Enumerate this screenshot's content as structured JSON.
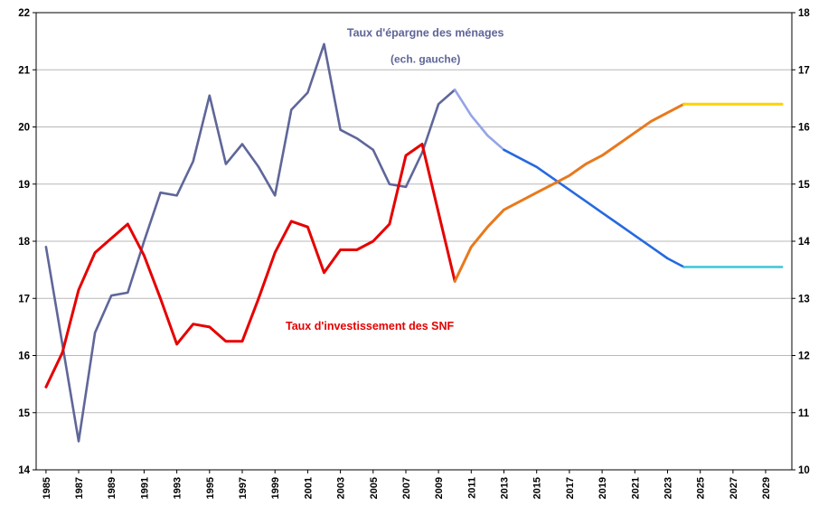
{
  "chart_data": {
    "type": "line",
    "title": "",
    "grid": "horizontal",
    "legend": "none",
    "x_domain": [
      1984.4,
      2030.6
    ],
    "x_ticks": [
      1985,
      1987,
      1989,
      1991,
      1993,
      1995,
      1997,
      1999,
      2001,
      2003,
      2005,
      2007,
      2009,
      2011,
      2013,
      2015,
      2017,
      2019,
      2021,
      2023,
      2025,
      2027,
      2029
    ],
    "left_axis": {
      "min": 14,
      "max": 22,
      "step": 1,
      "ticks": [
        14,
        15,
        16,
        17,
        18,
        19,
        20,
        21,
        22
      ]
    },
    "right_axis": {
      "min": 10,
      "max": 18,
      "step": 1,
      "ticks": [
        10,
        11,
        12,
        13,
        14,
        15,
        16,
        17,
        18
      ]
    },
    "colors": {
      "epargne_hist": "#5F6699",
      "epargne_proj_light": "#94A4E6",
      "epargne_proj_blue": "#2669E0",
      "epargne_proj_cyan": "#3CC6D9",
      "invest_hist": "#E60000",
      "invest_proj_orange": "#E8791D",
      "invest_proj_yellow": "#FFD200",
      "gridline": "#b8b8b8",
      "axis": "#000000"
    },
    "annotations": [
      {
        "text": "Taux d'épargne des ménages",
        "x": 2008.2,
        "y": 21.58,
        "color": "#5F6699",
        "size": 12.5
      },
      {
        "text": "(ech. gauche)",
        "x": 2008.2,
        "y": 21.12,
        "color": "#5F6699",
        "size": 12
      },
      {
        "text": "Taux d'investissement des SNF",
        "x": 2004.8,
        "y": 16.45,
        "color": "#E60000",
        "size": 12.5
      }
    ],
    "series": [
      {
        "id": "epargne-historique",
        "name": "Taux d'épargne des ménages (historique, ech. gauche)",
        "axis": "left",
        "color": "#5F6699",
        "width": 2.6,
        "start_year": 1985,
        "values": [
          17.9,
          16.2,
          14.5,
          16.4,
          17.05,
          17.1,
          18.0,
          18.85,
          18.8,
          19.4,
          20.55,
          19.35,
          19.7,
          19.3,
          18.8,
          20.3,
          20.6,
          21.45,
          19.95,
          19.8,
          19.6,
          19.0,
          18.95,
          19.55,
          20.4,
          20.65
        ]
      },
      {
        "id": "epargne-projection-light",
        "name": "Taux d'épargne des ménages (projection proche, ech. gauche)",
        "axis": "left",
        "color": "#94A4E6",
        "width": 2.6,
        "start_year": 2010,
        "values": [
          20.65,
          20.2,
          19.85,
          19.6
        ]
      },
      {
        "id": "epargne-projection-blue",
        "name": "Taux d'épargne des ménages (projection, ech. gauche)",
        "axis": "left",
        "color": "#2669E0",
        "width": 2.6,
        "start_year": 2013,
        "values": [
          19.6,
          19.45,
          19.3,
          19.1,
          18.9,
          18.7,
          18.5,
          18.3,
          18.1,
          17.9,
          17.7,
          17.55
        ]
      },
      {
        "id": "epargne-projection-cyan",
        "name": "Taux d'épargne des ménages (long terme, ech. gauche)",
        "axis": "left",
        "color": "#3CC6D9",
        "width": 2.6,
        "start_year": 2024,
        "values": [
          17.55,
          17.55,
          17.55,
          17.55,
          17.55,
          17.55,
          17.55
        ]
      },
      {
        "id": "invest-historique",
        "name": "Taux d'investissement des SNF (historique, ech. droite)",
        "axis": "right",
        "color": "#E60000",
        "width": 3,
        "start_year": 1985,
        "values": [
          11.45,
          12.05,
          13.15,
          13.8,
          14.05,
          14.3,
          13.75,
          13.0,
          12.2,
          12.55,
          12.5,
          12.25,
          12.25,
          13.0,
          13.8,
          14.35,
          14.25,
          13.45,
          13.85,
          13.85,
          14.0,
          14.3,
          15.5,
          15.7,
          14.5,
          13.3
        ]
      },
      {
        "id": "invest-projection-orange",
        "name": "Taux d'investissement des SNF (projection, ech. droite)",
        "axis": "right",
        "color": "#E8791D",
        "width": 3,
        "start_year": 2010,
        "values": [
          13.3,
          13.9,
          14.25,
          14.55,
          14.7,
          14.85,
          15.0,
          15.15,
          15.35,
          15.5,
          15.7,
          15.9,
          16.1,
          16.25,
          16.4
        ]
      },
      {
        "id": "invest-projection-yellow",
        "name": "Taux d'investissement des SNF (long terme, ech. droite)",
        "axis": "right",
        "color": "#FFD200",
        "width": 3,
        "start_year": 2024,
        "values": [
          16.4,
          16.4,
          16.4,
          16.4,
          16.4,
          16.4,
          16.4
        ]
      }
    ]
  }
}
